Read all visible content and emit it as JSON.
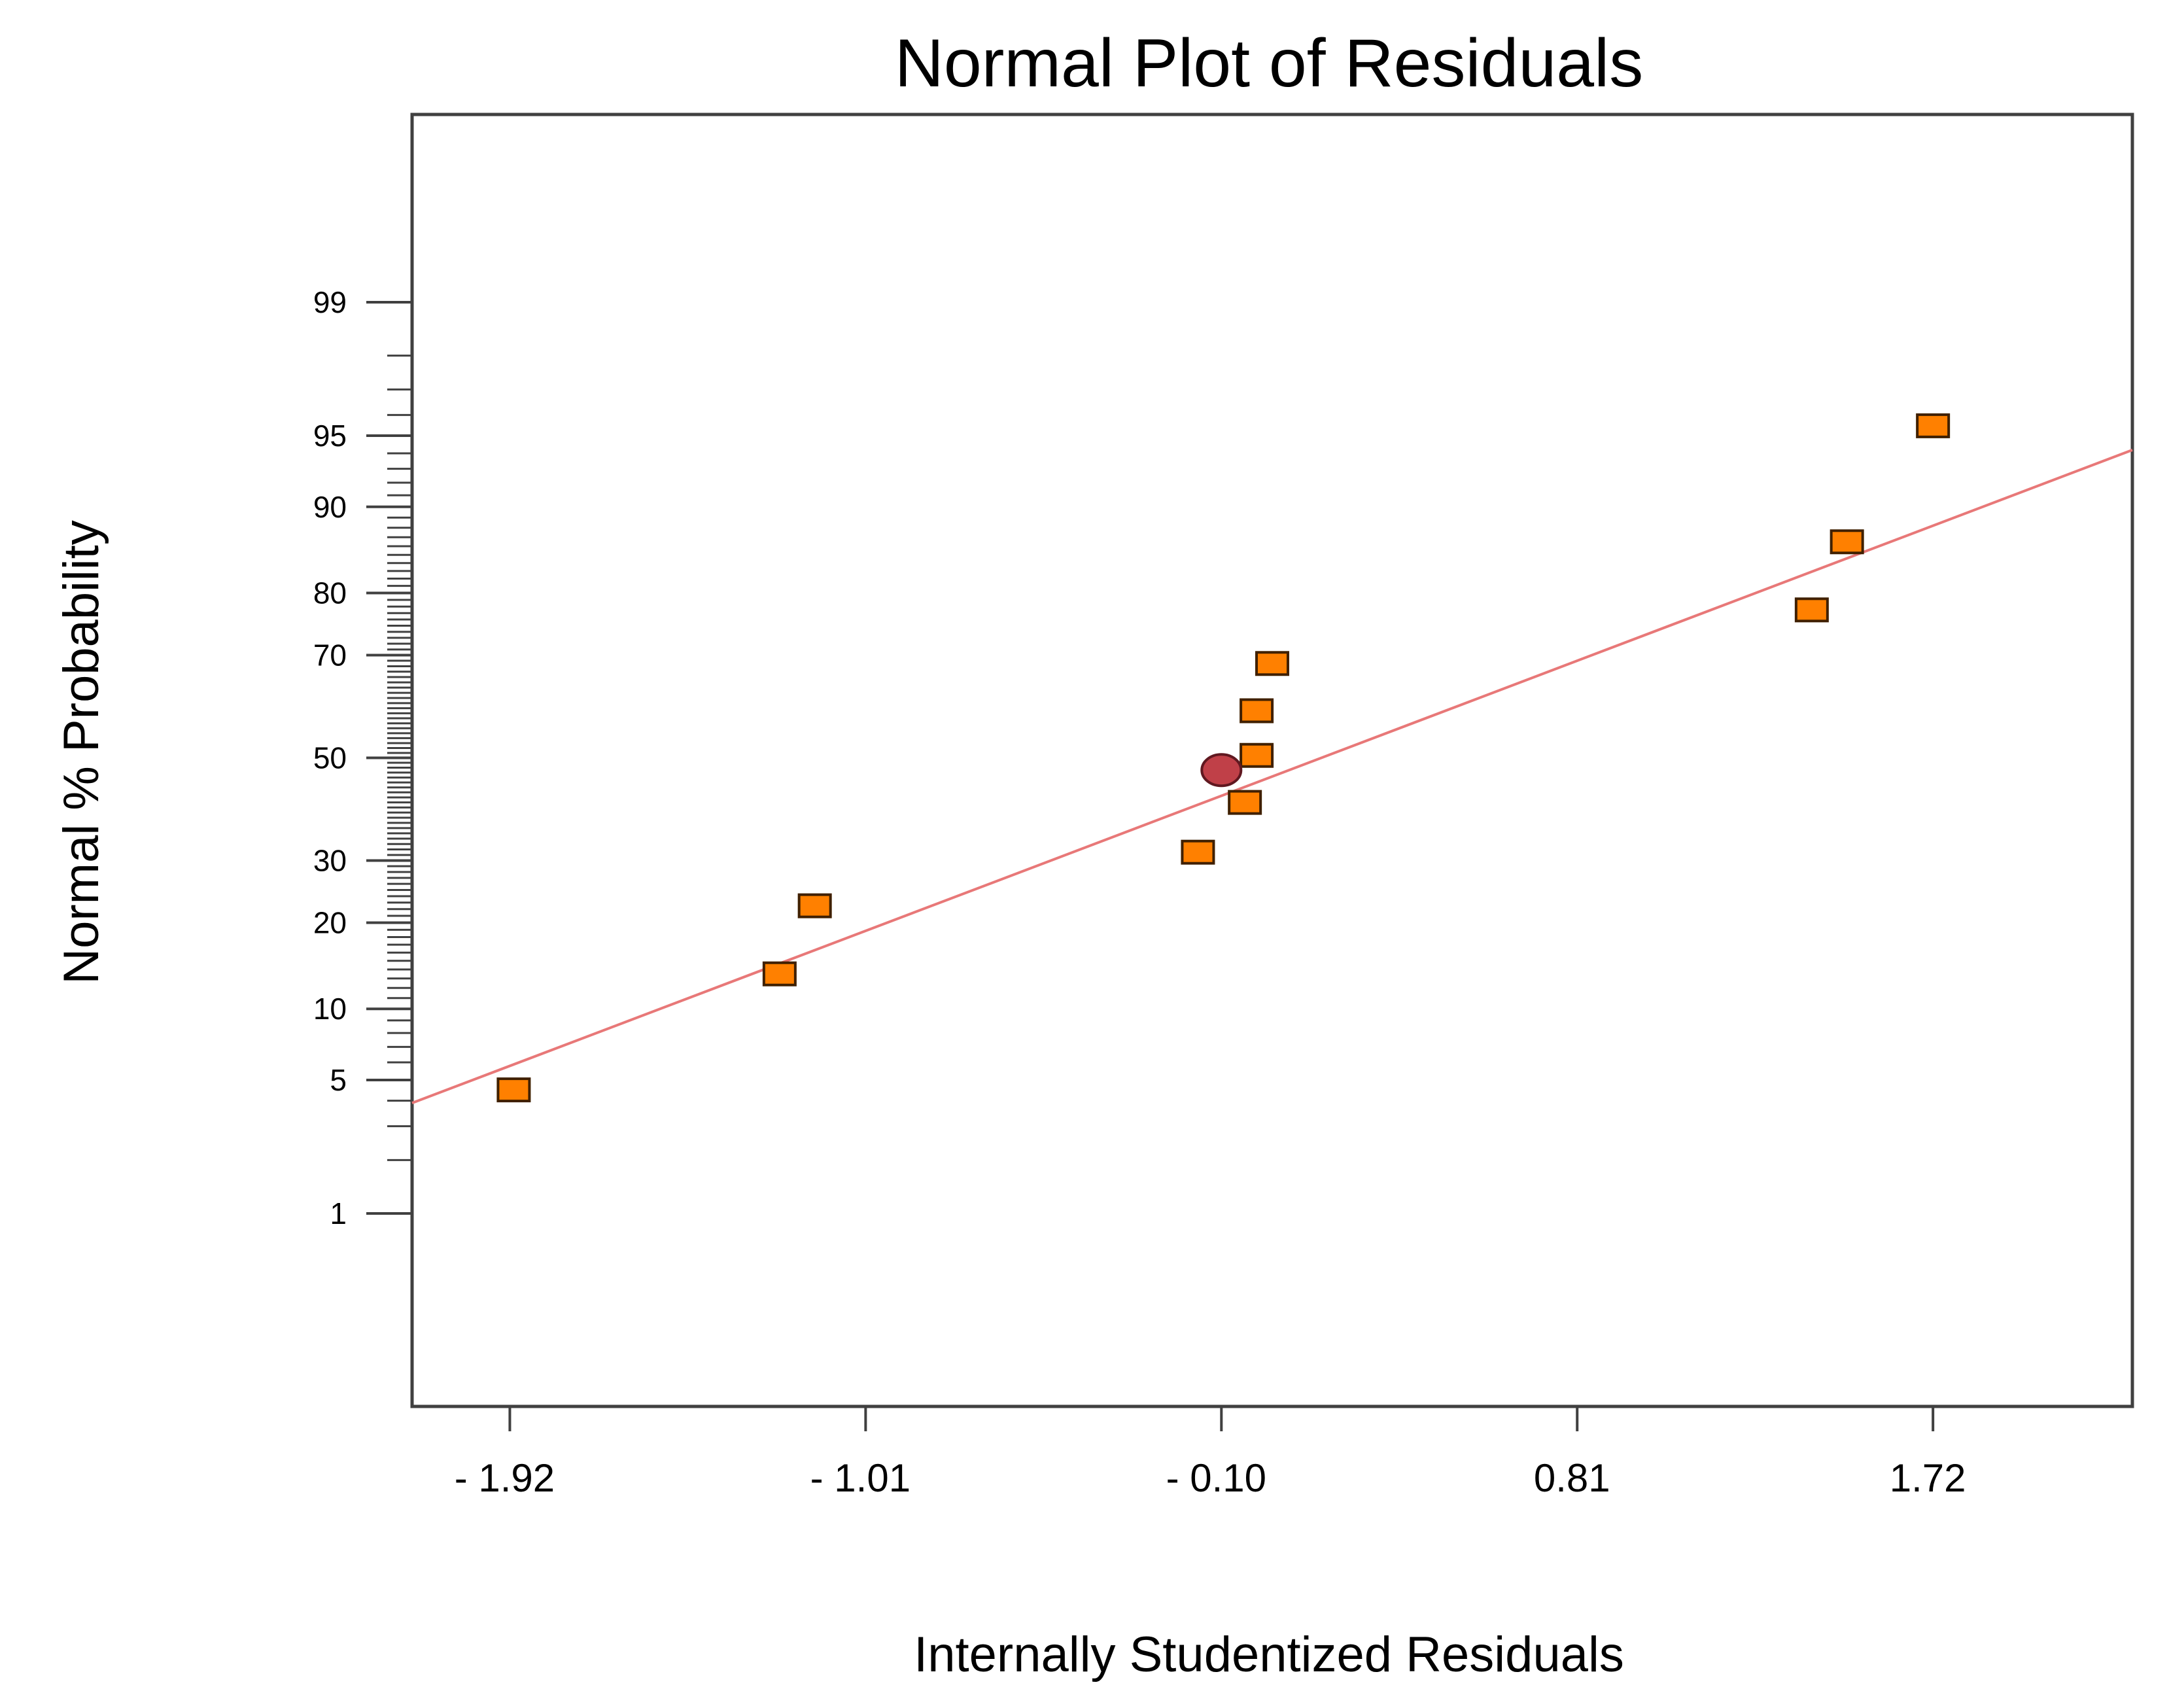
{
  "chart_data": {
    "type": "scatter",
    "title": "Normal Plot of Residuals",
    "xlabel": "Internally Studentized Residuals",
    "ylabel": "Normal % Probability",
    "xlim": [
      -2.17,
      2.23
    ],
    "x_ticks": [
      -1.92,
      -1.01,
      -0.1,
      0.81,
      1.72
    ],
    "x_tick_labels": [
      "- 1.92",
      "- 1.01",
      "- 0.10",
      "0.81",
      "1.72"
    ],
    "y_scale": "normal-probability",
    "y_ticks": [
      1,
      5,
      10,
      20,
      30,
      50,
      70,
      80,
      90,
      95,
      99
    ],
    "y_tick_labels": [
      "1",
      "5",
      "10",
      "20",
      "30",
      "50",
      "70",
      "80",
      "90",
      "95",
      "99"
    ],
    "y_minor_ticks": [
      2,
      3,
      4,
      6,
      7,
      8,
      9,
      11,
      12,
      13,
      14,
      15,
      16,
      17,
      18,
      19,
      21,
      22,
      23,
      24,
      25,
      26,
      27,
      28,
      29,
      31,
      32,
      33,
      34,
      35,
      36,
      37,
      38,
      39,
      40,
      41,
      42,
      43,
      44,
      45,
      46,
      47,
      48,
      49,
      51,
      52,
      53,
      54,
      55,
      56,
      57,
      58,
      59,
      60,
      61,
      62,
      63,
      64,
      65,
      66,
      67,
      68,
      69,
      71,
      72,
      73,
      74,
      75,
      76,
      77,
      78,
      79,
      81,
      82,
      83,
      84,
      85,
      86,
      87,
      88,
      89,
      91,
      92,
      93,
      94,
      96,
      97,
      98
    ],
    "points": [
      {
        "x": -1.91,
        "y": 4.5,
        "marker": "square"
      },
      {
        "x": -1.23,
        "y": 13.5,
        "marker": "square"
      },
      {
        "x": -1.14,
        "y": 22.5,
        "marker": "square"
      },
      {
        "x": -0.16,
        "y": 31.5,
        "marker": "square"
      },
      {
        "x": -0.04,
        "y": 41.0,
        "marker": "square"
      },
      {
        "x": -0.01,
        "y": 50.5,
        "marker": "square"
      },
      {
        "x": -0.01,
        "y": 59.5,
        "marker": "square"
      },
      {
        "x": 0.03,
        "y": 68.5,
        "marker": "square"
      },
      {
        "x": 1.41,
        "y": 77.5,
        "marker": "square"
      },
      {
        "x": 1.5,
        "y": 86.5,
        "marker": "square"
      },
      {
        "x": 1.72,
        "y": 95.5,
        "marker": "square"
      },
      {
        "x": -0.1,
        "y": 47.5,
        "marker": "circle"
      }
    ],
    "fit_line": {
      "x": [
        -2.17,
        2.23
      ],
      "y": [
        3.9,
        94.2
      ]
    },
    "colors": {
      "square_fill": "#ff8000",
      "square_edge": "#402000",
      "circle_fill": "#c04048",
      "circle_edge": "#601820",
      "fit_line": "#e87878",
      "axis": "#404040"
    }
  }
}
